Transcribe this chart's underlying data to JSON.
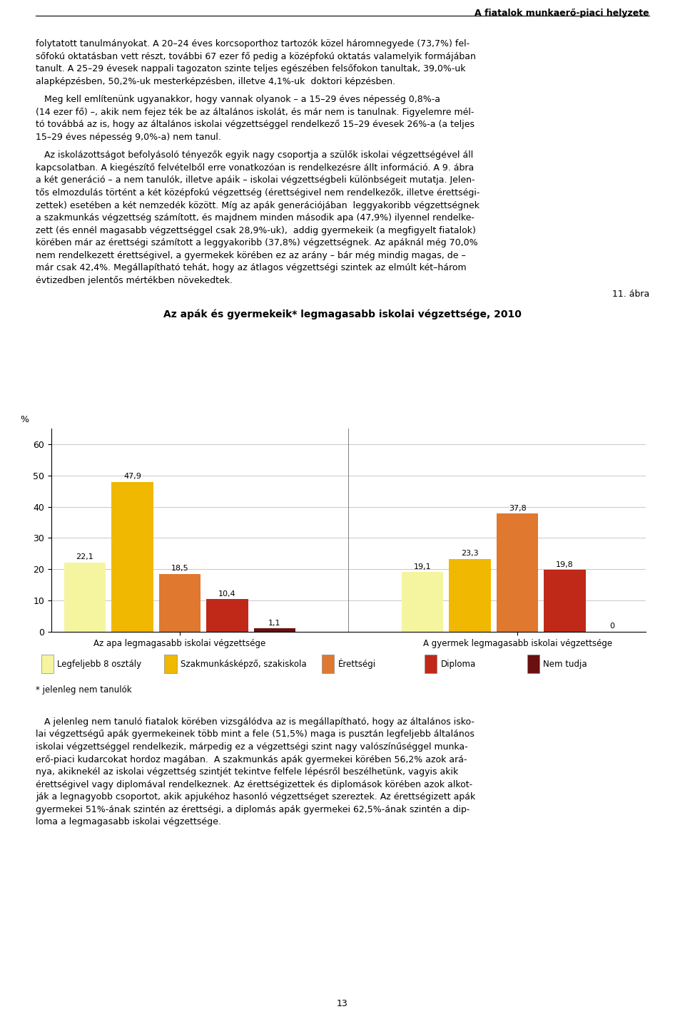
{
  "title_header": "A fiatalok munkaerő-piaci helyzete",
  "chart_title": "Az apák és gyermekeik* legmagasabb iskolai végzettsége, 2010",
  "figure_label": "11. ábra",
  "page_number": "13",
  "groups": [
    "Az apa legmagasabb iskolai végzettsége",
    "A gyermek legmagasabb iskolai végzettsége"
  ],
  "categories": [
    "Legfeljebb 8 osztály",
    "Szakmunkásképző, szakiskola",
    "Érettségi",
    "Diploma",
    "Nem tudja"
  ],
  "colors": [
    "#F5F5A0",
    "#F0B800",
    "#E07830",
    "#C02818",
    "#6B1010"
  ],
  "group1_values": [
    22.1,
    47.9,
    18.5,
    10.4,
    1.1
  ],
  "group2_values": [
    19.1,
    23.3,
    37.8,
    19.8,
    0.0
  ],
  "ylabel": "%",
  "ylim": [
    0,
    65
  ],
  "yticks": [
    0,
    10,
    20,
    30,
    40,
    50,
    60
  ],
  "note": "* jelenleg nem tanulók",
  "background_color": "#ffffff",
  "top_text_para1": "folytatott tanulmányokat. A 20–24 éves korcsoporthoz tartozók közel háromnegyede (73,7%) fel-\nsőfokú oktatásban vett részt, további 67 ezer fő pedig a középfokú oktatás valamelyik formájában\ntanult. A 25–29 évesek nappali tagozaton szinte teljes egészében felsőfokon tanultak, 39,0%-uk\nalapképzésben, 50,2%-uk mesterképzésben, illetve 4,1%-uk  doktori képzésben.",
  "top_text_para2": "   Meg kell említenünk ugyanakkor, hogy vannak olyanok – a 15–29 éves népesség 0,8%-a\n(14 ezer fő) –, akik nem fejez ték be az általános iskolát, és már nem is tanulnak. Figyelemre mél-\ntó továbbá az is, hogy az általános iskolai végzettséggel rendelkező 15–29 évesek 26%-a (a teljes\n15–29 éves népesség 9,0%-a) nem tanul.",
  "top_text_para3": "   Az iskolázottságot befolyásoló tényezők egyik nagy csoportja a szülők iskolai végzettségével áll\nkapcsolatban. A kiegészítő felvételből erre vonatkozóan is rendelkezésre állt információ. A 9. ábra\na két generáció – a nem tanulók, illetve apáik – iskolai végzettségbeli különbségeit mutatja. Jelen-\ntős elmozdulás történt a két középfokú végzettség (érettségivel nem rendelkezők, illetve érettségi-\nzettek) esetében a két nemzedék között. Míg az apák generációjában  leggyakoribb végzettségnek\na szakmunkás végzettség számított, és majdnem minden második apa (47,9%) ilyennel rendelke-\nzett (és ennél magasabb végzettséggel csak 28,9%-uk),  addig gyermekeik (a megfigyelt fiatalok)\nkörében már az érettségi számított a leggyakoribb (37,8%) végzettségnek. Az apáknál még 70,0%\nnem rendelkezett érettségivel, a gyermekek körében ez az arány – bár még mindig magas, de –\nmár csak 42,4%. Megállapítható tehát, hogy az átlagos végzettségi szintek az elmúlt két–három\névtizedben jelentős mértékben növekedtek.",
  "bottom_text": "   A jelenleg nem tanuló fiatalok körében vizsgálódva az is megállapítható, hogy az általános isko-\nlai végzettségű apák gyermekeinek több mint a fele (51,5%) maga is pusztán legfeljebb általános\niskolai végzettséggel rendelkezik, márpedig ez a végzettségi szint nagy valószínűséggel munka-\nerő-piaci kudarcokat hordoz magában.  A szakmunkás apák gyermekei körében 56,2% azok ará-\nnya, akiknekél az iskolai végzettség szintjét tekintve felfele lépésről beszélhetünk, vagyis akik\nérettségivel vagy diplomával rendelkeznek. Az érettségizettek és diplomások körében azok alkot-\nják a legnagyobb csoportot, akik apjukéhoz hasonló végzettséget szereztek. Az érettségizett apák\ngyermekei 51%-ának szintén az érettségi, a diplomás apák gyermekei 62,5%-ának szintén a dip-\nloma a legmagasabb iskolai végzettsége."
}
